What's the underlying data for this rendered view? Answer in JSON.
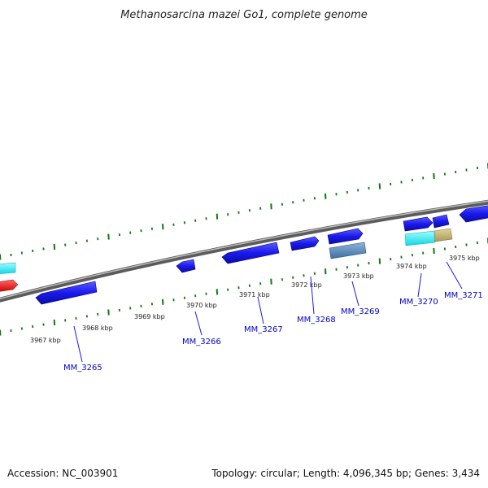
{
  "header": {
    "title": "Methanosarcina mazei Go1, complete genome"
  },
  "footer": {
    "accession": "Accession: NC_003901",
    "summary": "Topology: circular; Length: 4,096,345 bp; Genes: 3,434"
  },
  "ruler": {
    "labels": [
      "3967 kbp",
      "3968 kbp",
      "3969 kbp",
      "3970 kbp",
      "3971 kbp",
      "3972 kbp",
      "3973 kbp",
      "3974 kbp",
      "3975 kbp"
    ]
  },
  "genes": {
    "labels": [
      "MM_3265",
      "MM_3266",
      "MM_3267",
      "MM_3268",
      "MM_3269",
      "MM_3270",
      "MM_3271"
    ]
  },
  "colors": {
    "cds": "#1a1aee",
    "cds_edge": "#00007a",
    "accent_red": "#ee1111",
    "accent_cyan": "#22eeee",
    "accent_steel": "#5f8fbf",
    "accent_khaki": "#c8b878",
    "tick": "#117711",
    "backbone": "#888888",
    "gene_label": "#0000cc"
  }
}
